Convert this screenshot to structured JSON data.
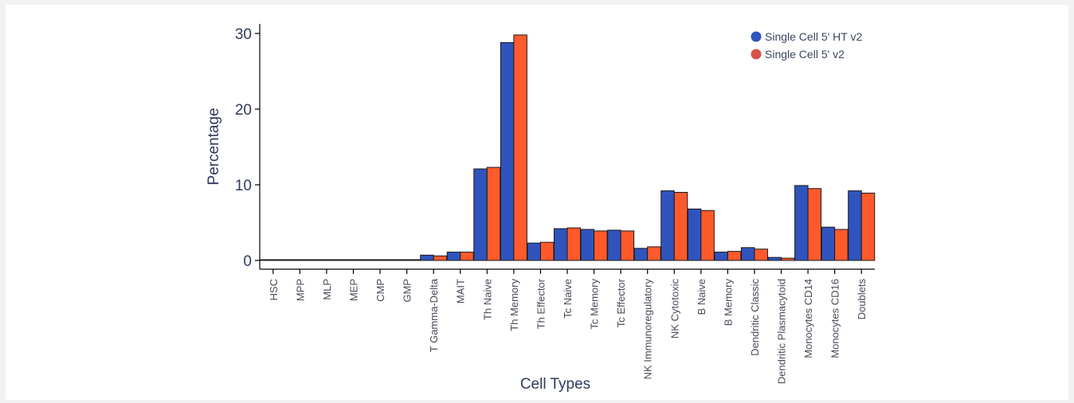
{
  "chart_data": {
    "type": "bar",
    "title": "",
    "xlabel": "Cell Types",
    "ylabel": "Percentage",
    "ylim": [
      0,
      31
    ],
    "yticks": [
      0,
      10,
      20,
      30
    ],
    "grid": false,
    "legend_position": "top-right",
    "categories": [
      "HSC",
      "MPP",
      "MLP",
      "MEP",
      "CMP",
      "GMP",
      "T Gamma-Delta",
      "MAIT",
      "Th Naive",
      "Th Memory",
      "Th Effector",
      "Tc Naive",
      "Tc Memory",
      "Tc Effector",
      "NK Immunoregulatory",
      "NK Cytotoxic",
      "B Naive",
      "B Memory",
      "Dendritic Classic",
      "Dendritic Plasmacytoid",
      "Monocytes CD14",
      "Monocytes CD16",
      "Doublets"
    ],
    "series": [
      {
        "name": "Single Cell 5' HT v2",
        "color": "#2f54bd",
        "values": [
          0.1,
          0.05,
          0.05,
          0.1,
          0.05,
          0.05,
          0.7,
          1.1,
          12.1,
          28.8,
          2.3,
          4.2,
          4.1,
          4.0,
          1.6,
          9.2,
          6.8,
          1.1,
          1.7,
          0.4,
          9.9,
          4.4,
          9.2
        ]
      },
      {
        "name": "Single Cell 5' v2",
        "color": "#ff5a2c",
        "values": [
          0.1,
          0.05,
          0.1,
          0.1,
          0.05,
          0.05,
          0.6,
          1.1,
          12.3,
          29.8,
          2.4,
          4.3,
          3.9,
          3.9,
          1.8,
          9.0,
          6.6,
          1.2,
          1.5,
          0.3,
          9.5,
          4.1,
          8.9
        ]
      }
    ]
  },
  "legend": {
    "items": [
      {
        "label": "Single Cell 5' HT v2",
        "color": "#2f54bd"
      },
      {
        "label": "Single Cell 5' v2",
        "color": "#d9534a"
      }
    ]
  }
}
